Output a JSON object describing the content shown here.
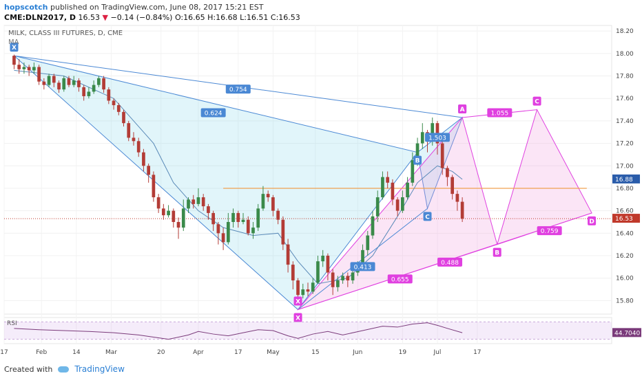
{
  "header": {
    "author": "hopscotch",
    "published_text": "published on TradingView.com, June 08, 2017 15:21 EST",
    "symbol": "CME:DLN2017, D",
    "last_price": "16.53",
    "change_symbol": "▼",
    "change_text": "−0.14 (−0.84%)",
    "ohlc": "O:16.65 H:16.68 L:16.51 C:16.53"
  },
  "legend": {
    "title": "MILK, CLASS III FUTURES, D, CME",
    "indicator": "MA"
  },
  "footer": {
    "created_with": "Created with",
    "brand": "TradingView"
  },
  "colors": {
    "up": "#3a8a4a",
    "down": "#b33c36",
    "blue_pattern": "#4a88d4",
    "pink_pattern": "#e040e0",
    "resistance": "#f0a050",
    "rsi_line": "#7a3a7a"
  },
  "chart_data": {
    "type": "candlestick",
    "title": "MILK, CLASS III FUTURES, D, CME",
    "price_axis": {
      "range": [
        15.68,
        18.25
      ],
      "ticks": [
        "18.20",
        "18.00",
        "17.80",
        "17.60",
        "17.40",
        "17.20",
        "17.00",
        "16.80",
        "16.60",
        "16.40",
        "16.20",
        "16.00",
        "15.80"
      ]
    },
    "time_axis": {
      "range_days": [
        -4,
        57
      ],
      "labels": [
        {
          "day": -4,
          "text": "17"
        },
        {
          "day": 11,
          "text": "Feb"
        },
        {
          "day": 25,
          "text": "14"
        },
        {
          "day": 39,
          "text": "Mar"
        },
        {
          "day": 59,
          "text": "20"
        },
        {
          "day": 74,
          "text": "Apr"
        },
        {
          "day": 90,
          "text": "17"
        },
        {
          "day": 104,
          "text": "May"
        },
        {
          "day": 121,
          "text": "15"
        },
        {
          "day": 138,
          "text": "Jun"
        },
        {
          "day": 156,
          "text": "19"
        },
        {
          "day": 170,
          "text": "Jul"
        },
        {
          "day": 186,
          "text": "17"
        }
      ]
    },
    "price_labels": [
      {
        "value": 16.88,
        "text": "16.88",
        "color": "#2a5caa"
      },
      {
        "value": 16.53,
        "text": "16.53",
        "color": "#c0392b"
      }
    ],
    "resistance_level": 16.8,
    "candles": [
      [
        0,
        17.98,
        17.9,
        17.99,
        17.86
      ],
      [
        2,
        17.9,
        17.86,
        17.95,
        17.82
      ],
      [
        4,
        17.86,
        17.88,
        17.92,
        17.82
      ],
      [
        6,
        17.88,
        17.85,
        17.9,
        17.8
      ],
      [
        8,
        17.85,
        17.88,
        17.92,
        17.82
      ],
      [
        10,
        17.88,
        17.75,
        17.9,
        17.72
      ],
      [
        12,
        17.75,
        17.72,
        17.78,
        17.68
      ],
      [
        14,
        17.72,
        17.8,
        17.82,
        17.7
      ],
      [
        16,
        17.8,
        17.74,
        17.82,
        17.7
      ],
      [
        18,
        17.74,
        17.68,
        17.76,
        17.65
      ],
      [
        20,
        17.68,
        17.78,
        17.8,
        17.66
      ],
      [
        22,
        17.78,
        17.72,
        17.8,
        17.7
      ],
      [
        24,
        17.72,
        17.76,
        17.8,
        17.7
      ],
      [
        26,
        17.76,
        17.7,
        17.78,
        17.66
      ],
      [
        28,
        17.7,
        17.62,
        17.72,
        17.58
      ],
      [
        30,
        17.62,
        17.66,
        17.7,
        17.6
      ],
      [
        32,
        17.66,
        17.72,
        17.76,
        17.64
      ],
      [
        34,
        17.72,
        17.78,
        17.8,
        17.7
      ],
      [
        36,
        17.78,
        17.68,
        17.8,
        17.65
      ],
      [
        38,
        17.68,
        17.58,
        17.7,
        17.55
      ],
      [
        40,
        17.58,
        17.54,
        17.6,
        17.5
      ],
      [
        42,
        17.54,
        17.48,
        17.56,
        17.45
      ],
      [
        44,
        17.48,
        17.38,
        17.5,
        17.35
      ],
      [
        46,
        17.38,
        17.25,
        17.4,
        17.22
      ],
      [
        48,
        17.25,
        17.22,
        17.3,
        17.18
      ],
      [
        50,
        17.22,
        17.12,
        17.25,
        17.08
      ],
      [
        52,
        17.12,
        17.0,
        17.15,
        16.95
      ],
      [
        54,
        17.0,
        16.92,
        17.02,
        16.85
      ],
      [
        56,
        16.92,
        16.72,
        16.95,
        16.68
      ],
      [
        58,
        16.72,
        16.62,
        16.75,
        16.58
      ],
      [
        60,
        16.62,
        16.56,
        16.66,
        16.52
      ],
      [
        62,
        16.56,
        16.6,
        16.65,
        16.54
      ],
      [
        64,
        16.6,
        16.5,
        16.62,
        16.45
      ],
      [
        66,
        16.5,
        16.45,
        16.54,
        16.35
      ],
      [
        68,
        16.45,
        16.62,
        16.7,
        16.42
      ],
      [
        70,
        16.62,
        16.7,
        16.72,
        16.58
      ],
      [
        72,
        16.7,
        16.66,
        16.74,
        16.62
      ],
      [
        74,
        16.66,
        16.72,
        16.8,
        16.64
      ],
      [
        76,
        16.72,
        16.64,
        16.75,
        16.6
      ],
      [
        78,
        16.64,
        16.58,
        16.66,
        16.52
      ],
      [
        80,
        16.58,
        16.48,
        16.6,
        16.42
      ],
      [
        82,
        16.48,
        16.4,
        16.5,
        16.3
      ],
      [
        84,
        16.4,
        16.32,
        16.45,
        16.25
      ],
      [
        86,
        16.32,
        16.5,
        16.58,
        16.3
      ],
      [
        88,
        16.5,
        16.58,
        16.62,
        16.45
      ],
      [
        90,
        16.58,
        16.5,
        16.6,
        16.45
      ],
      [
        92,
        16.5,
        16.52,
        16.58,
        16.48
      ],
      [
        94,
        16.52,
        16.4,
        16.55,
        16.38
      ],
      [
        96,
        16.4,
        16.45,
        16.5,
        16.35
      ],
      [
        98,
        16.45,
        16.62,
        16.66,
        16.42
      ],
      [
        100,
        16.62,
        16.75,
        16.82,
        16.6
      ],
      [
        102,
        16.75,
        16.72,
        16.78,
        16.68
      ],
      [
        104,
        16.72,
        16.6,
        16.74,
        16.55
      ],
      [
        106,
        16.6,
        16.52,
        16.62,
        16.48
      ],
      [
        108,
        16.52,
        16.3,
        16.55,
        16.25
      ],
      [
        110,
        16.3,
        16.12,
        16.35,
        16.05
      ],
      [
        112,
        16.12,
        15.98,
        16.15,
        15.9
      ],
      [
        114,
        15.98,
        15.85,
        16.0,
        15.78
      ],
      [
        116,
        15.85,
        15.9,
        15.95,
        15.82
      ],
      [
        118,
        15.9,
        15.88,
        15.96,
        15.84
      ],
      [
        120,
        15.88,
        15.96,
        16.0,
        15.86
      ],
      [
        122,
        15.96,
        16.15,
        16.2,
        15.95
      ],
      [
        124,
        16.15,
        16.2,
        16.25,
        16.1
      ],
      [
        126,
        16.2,
        16.05,
        16.22,
        15.98
      ],
      [
        128,
        16.05,
        15.92,
        16.08,
        15.85
      ],
      [
        130,
        15.92,
        15.98,
        16.02,
        15.88
      ],
      [
        132,
        15.98,
        16.02,
        16.05,
        15.95
      ],
      [
        134,
        16.02,
        15.98,
        16.05,
        15.92
      ],
      [
        136,
        15.98,
        16.05,
        16.08,
        15.95
      ],
      [
        138,
        16.05,
        16.12,
        16.15,
        16.02
      ],
      [
        140,
        16.12,
        16.25,
        16.3,
        16.1
      ],
      [
        142,
        16.25,
        16.38,
        16.42,
        16.2
      ],
      [
        144,
        16.38,
        16.55,
        16.6,
        16.35
      ],
      [
        146,
        16.55,
        16.72,
        16.78,
        16.5
      ],
      [
        148,
        16.72,
        16.9,
        16.95,
        16.7
      ],
      [
        150,
        16.9,
        16.85,
        16.95,
        16.8
      ],
      [
        152,
        16.85,
        16.7,
        16.88,
        16.65
      ],
      [
        154,
        16.7,
        16.6,
        16.72,
        16.55
      ],
      [
        156,
        16.6,
        16.72,
        16.78,
        16.58
      ],
      [
        158,
        16.72,
        16.85,
        16.9,
        16.7
      ],
      [
        160,
        16.85,
        17.05,
        17.12,
        16.82
      ],
      [
        162,
        17.05,
        17.2,
        17.25,
        17.0
      ],
      [
        164,
        17.2,
        17.3,
        17.38,
        17.15
      ],
      [
        166,
        17.3,
        17.22,
        17.32,
        17.12
      ],
      [
        168,
        17.22,
        17.38,
        17.43,
        17.18
      ],
      [
        170,
        17.38,
        17.2,
        17.4,
        17.1
      ],
      [
        172,
        17.2,
        16.98,
        17.22,
        16.92
      ],
      [
        174,
        16.98,
        16.9,
        17.0,
        16.82
      ],
      [
        176,
        16.9,
        16.75,
        16.92,
        16.7
      ],
      [
        178,
        16.75,
        16.68,
        16.78,
        16.6
      ],
      [
        180,
        16.68,
        16.53,
        16.72,
        16.5
      ]
    ],
    "moving_average": [
      [
        0,
        17.85
      ],
      [
        20,
        17.8
      ],
      [
        40,
        17.6
      ],
      [
        56,
        17.2
      ],
      [
        64,
        16.85
      ],
      [
        74,
        16.6
      ],
      [
        84,
        16.45
      ],
      [
        96,
        16.38
      ],
      [
        106,
        16.4
      ],
      [
        114,
        16.15
      ],
      [
        122,
        15.95
      ],
      [
        134,
        16.0
      ],
      [
        144,
        16.2
      ],
      [
        154,
        16.55
      ],
      [
        162,
        16.85
      ],
      [
        170,
        17.0
      ],
      [
        176,
        16.95
      ],
      [
        180,
        16.88
      ]
    ],
    "rsi": {
      "value_label": "44.7040",
      "range": [
        20,
        80
      ],
      "bands": [
        30,
        70
      ],
      "values": [
        [
          0,
          55
        ],
        [
          10,
          52
        ],
        [
          20,
          50
        ],
        [
          30,
          48
        ],
        [
          40,
          45
        ],
        [
          50,
          40
        ],
        [
          56,
          35
        ],
        [
          62,
          30
        ],
        [
          70,
          40
        ],
        [
          74,
          48
        ],
        [
          80,
          42
        ],
        [
          86,
          38
        ],
        [
          92,
          45
        ],
        [
          98,
          52
        ],
        [
          104,
          50
        ],
        [
          110,
          38
        ],
        [
          114,
          32
        ],
        [
          120,
          42
        ],
        [
          126,
          48
        ],
        [
          132,
          40
        ],
        [
          140,
          50
        ],
        [
          148,
          60
        ],
        [
          154,
          58
        ],
        [
          160,
          65
        ],
        [
          166,
          68
        ],
        [
          170,
          62
        ],
        [
          174,
          55
        ],
        [
          180,
          45
        ]
      ]
    },
    "patterns": [
      {
        "name": "blue",
        "points": [
          {
            "label": "X",
            "day": 0,
            "price": 17.98
          },
          {
            "label": "",
            "day": 114,
            "price": 15.72
          },
          {
            "label": "B",
            "day": 162,
            "price": 17.12
          },
          {
            "label": "C",
            "day": 166,
            "price": 16.62
          },
          {
            "label": "A",
            "day": 180,
            "price": 17.43
          }
        ],
        "ratios": [
          {
            "text": "0.754",
            "day": 90,
            "price": 17.68
          },
          {
            "text": "0.624",
            "day": 80,
            "price": 17.47
          },
          {
            "text": "1.503",
            "day": 170,
            "price": 17.25
          },
          {
            "text": "0.413",
            "day": 140,
            "price": 16.1
          }
        ]
      },
      {
        "name": "pink",
        "points": [
          {
            "label": "X",
            "day": 114,
            "price": 15.72
          },
          {
            "label": "A",
            "day": 180,
            "price": 17.43
          },
          {
            "label": "B",
            "day": 194,
            "price": 16.3
          },
          {
            "label": "C",
            "day": 210,
            "price": 17.5
          },
          {
            "label": "D",
            "day": 232,
            "price": 16.58
          }
        ],
        "ratios": [
          {
            "text": "1.055",
            "day": 195,
            "price": 17.47
          },
          {
            "text": "0.488",
            "day": 175,
            "price": 16.14
          },
          {
            "text": "0.759",
            "day": 215,
            "price": 16.42
          },
          {
            "text": "0.655",
            "day": 155,
            "price": 15.99
          }
        ]
      }
    ]
  }
}
